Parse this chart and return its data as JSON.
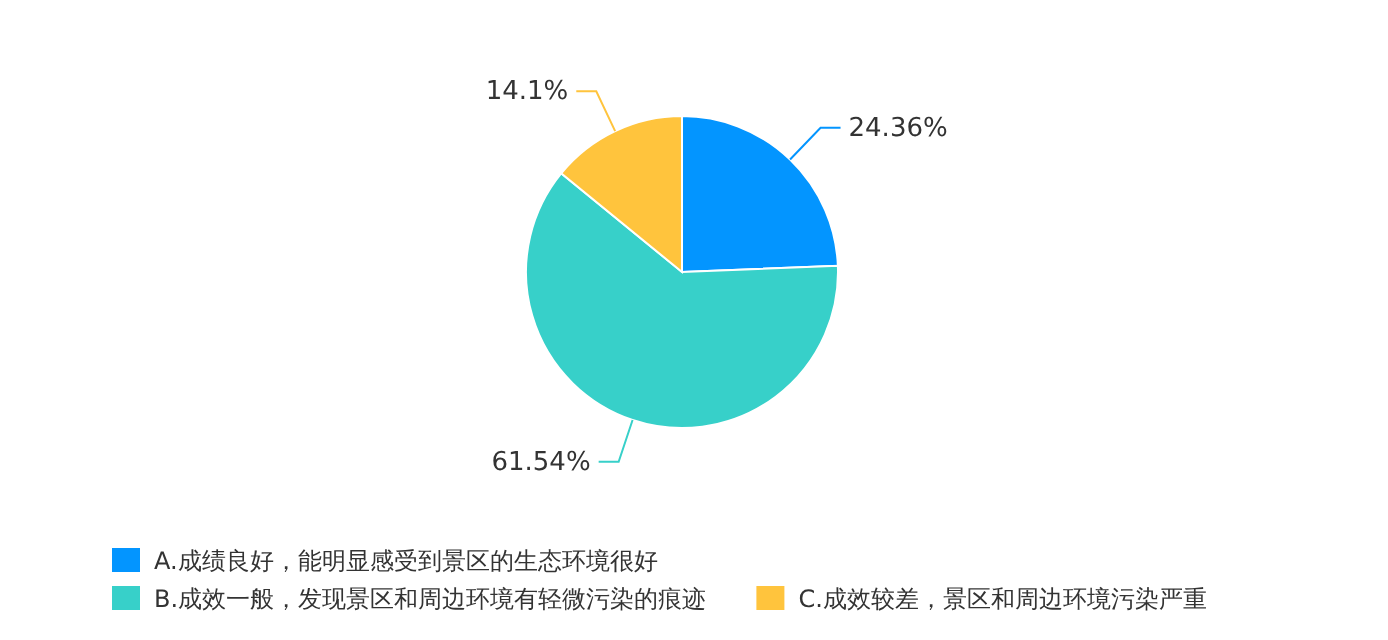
{
  "chart_data": {
    "type": "pie",
    "categories": [
      "A.成绩良好，能明显感受到景区的生态环境很好",
      "B.成效一般，发现景区和周边环境有轻微污染的痕迹",
      "C.成效较差，景区和周边环境污染严重"
    ],
    "values": [
      24.36,
      61.54,
      14.1
    ],
    "colors": [
      "#0395ff",
      "#37d0c9",
      "#ffc43d"
    ],
    "value_labels": [
      "24.36%",
      "61.54%",
      "14.1%"
    ],
    "legend": "bottom"
  }
}
